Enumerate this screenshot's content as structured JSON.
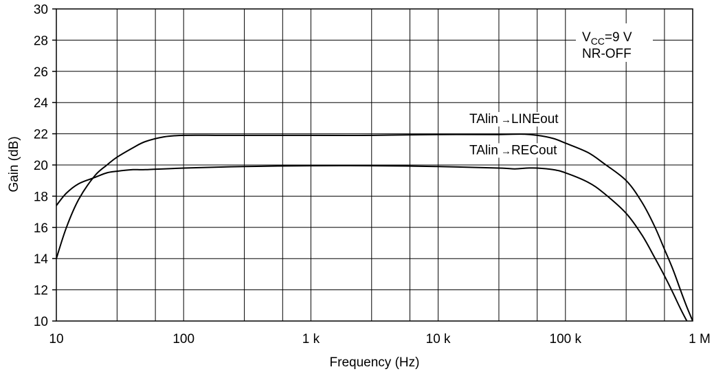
{
  "chart_data": {
    "type": "line",
    "xscale": "log",
    "xlabel": "Frequency  (Hz)",
    "ylabel": "Gain  (dB)",
    "xlim": [
      10,
      1000000
    ],
    "ylim": [
      10,
      30
    ],
    "grid": true,
    "x_ticks": [
      {
        "value": 10,
        "label": "10"
      },
      {
        "value": 100,
        "label": "100"
      },
      {
        "value": 1000,
        "label": "1 k"
      },
      {
        "value": 10000,
        "label": "10 k"
      },
      {
        "value": 100000,
        "label": "100 k"
      },
      {
        "value": 1000000,
        "label": "1 M"
      }
    ],
    "y_ticks": [
      {
        "value": 10,
        "label": "10"
      },
      {
        "value": 12,
        "label": "12"
      },
      {
        "value": 14,
        "label": "14"
      },
      {
        "value": 16,
        "label": "16"
      },
      {
        "value": 18,
        "label": "18"
      },
      {
        "value": 20,
        "label": "20"
      },
      {
        "value": 22,
        "label": "22"
      },
      {
        "value": 24,
        "label": "24"
      },
      {
        "value": 26,
        "label": "26"
      },
      {
        "value": 28,
        "label": "28"
      },
      {
        "value": 30,
        "label": "30"
      }
    ],
    "conditions": {
      "vcc_prefix": "V",
      "vcc_subscript": "CC",
      "vcc_value": "=9 V",
      "mode": "NR-OFF"
    },
    "series": [
      {
        "name": "TAlin→LINEout",
        "label_prefix": "TAlin",
        "label_arrow": "→",
        "label_suffix": "LINEout",
        "label_at": {
          "x": 50000,
          "y": 22.6
        },
        "x": [
          10,
          12,
          15,
          20,
          25,
          30,
          40,
          50,
          70,
          100,
          200,
          500,
          1000,
          3000,
          10000,
          30000,
          45000,
          60000,
          80000,
          100000,
          150000,
          200000,
          300000,
          400000,
          500000,
          600000,
          700000,
          800000,
          900000,
          1000000
        ],
        "y": [
          14.0,
          16.0,
          17.8,
          19.3,
          20.0,
          20.5,
          21.1,
          21.5,
          21.8,
          21.9,
          21.9,
          21.9,
          21.9,
          21.9,
          21.95,
          21.95,
          21.98,
          21.9,
          21.7,
          21.4,
          20.8,
          20.1,
          19.0,
          17.6,
          16.1,
          14.6,
          13.3,
          12.0,
          10.9,
          10.0
        ]
      },
      {
        "name": "TAlin→RECout",
        "label_prefix": "TAlin",
        "label_arrow": "→",
        "label_suffix": "RECout",
        "label_at": {
          "x": 50000,
          "y": 20.6
        },
        "x": [
          10,
          12,
          15,
          20,
          25,
          30,
          40,
          50,
          100,
          300,
          1000,
          3000,
          10000,
          30000,
          40000,
          50000,
          60000,
          80000,
          100000,
          150000,
          200000,
          300000,
          400000,
          500000,
          600000,
          700000,
          800000,
          900000
        ],
        "y": [
          17.4,
          18.2,
          18.8,
          19.2,
          19.5,
          19.6,
          19.7,
          19.7,
          19.8,
          19.9,
          19.95,
          19.95,
          19.9,
          19.8,
          19.75,
          19.8,
          19.8,
          19.7,
          19.5,
          18.9,
          18.2,
          16.9,
          15.5,
          14.1,
          12.9,
          11.8,
          10.8,
          10.0
        ]
      }
    ]
  }
}
